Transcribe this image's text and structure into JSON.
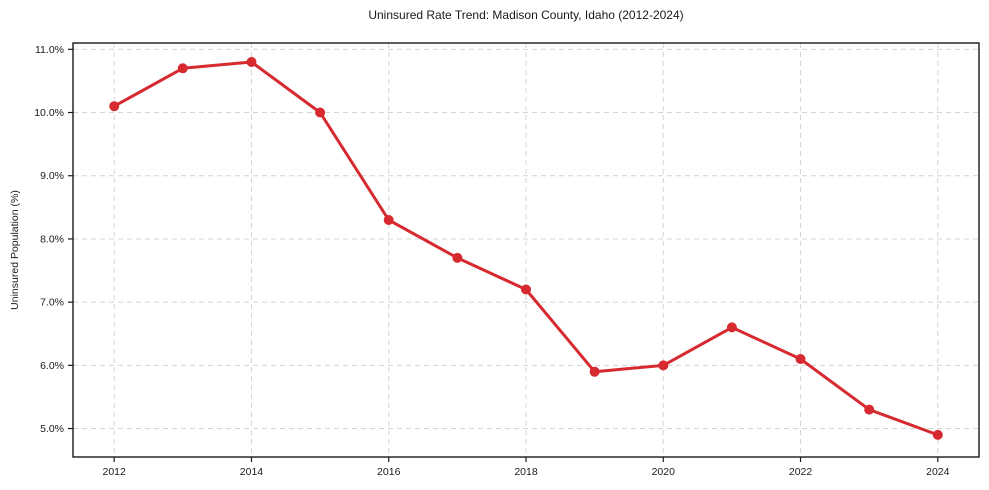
{
  "page": {
    "background": "#ffffff"
  },
  "chart_data": {
    "type": "line",
    "title": "Uninsured Rate Trend: Madison County, Idaho (2012-2024)",
    "xlabel": "",
    "ylabel": "Uninsured Population (%)",
    "x": [
      2012,
      2013,
      2014,
      2015,
      2016,
      2017,
      2018,
      2019,
      2020,
      2021,
      2022,
      2023,
      2024
    ],
    "values": [
      10.1,
      10.7,
      10.8,
      10.0,
      8.3,
      7.7,
      7.2,
      5.9,
      6.0,
      6.6,
      6.1,
      5.3,
      4.9
    ],
    "xlim": [
      2011.4,
      2024.6
    ],
    "ylim": [
      4.55,
      11.1
    ],
    "xticks": [
      2012,
      2014,
      2016,
      2018,
      2020,
      2022,
      2024
    ],
    "xtick_labels": [
      "2012",
      "2014",
      "2016",
      "2018",
      "2020",
      "2022",
      "2024"
    ],
    "yticks": [
      5.0,
      6.0,
      7.0,
      8.0,
      9.0,
      10.0,
      11.0
    ],
    "ytick_labels": [
      "5.0%",
      "6.0%",
      "7.0%",
      "8.0%",
      "9.0%",
      "10.0%",
      "11.0%"
    ],
    "grid": true,
    "grid_style": "dashed",
    "legend_position": "none",
    "line_color": "#d62a30",
    "marker": "circle",
    "marker_color": "#d62a30",
    "grid_color": "#d4d4d4",
    "spine_color": "#1a1a1a",
    "tick_label_color": "#1a1a1a"
  }
}
